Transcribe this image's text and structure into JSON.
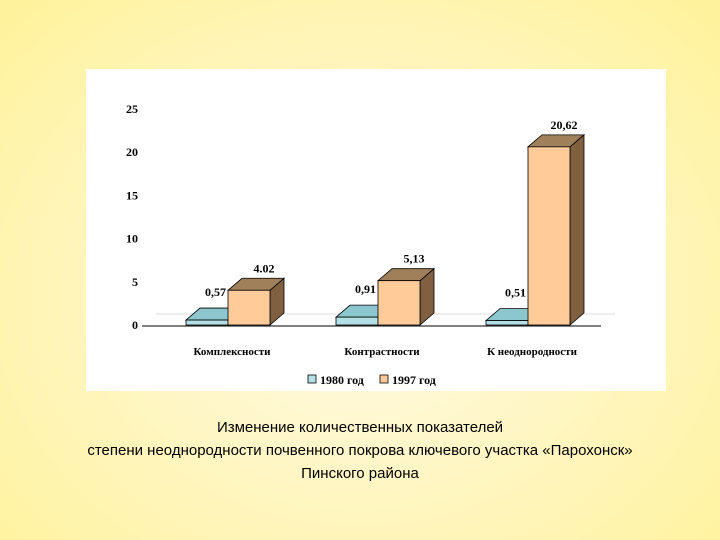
{
  "chart_data": {
    "type": "bar",
    "style": "3d-column",
    "categories": [
      "Комплексности",
      "Контрастности",
      "К неоднородности"
    ],
    "series": [
      {
        "name": "1980 год",
        "values": [
          0.57,
          0.91,
          0.51
        ],
        "labels": [
          "0,57",
          "0,91",
          "0,51"
        ],
        "color": "#b3e0e6",
        "side_color": "#6fa4ab",
        "top_color": "#8cc7cf"
      },
      {
        "name": "1997 год",
        "values": [
          4.02,
          5.13,
          20.62
        ],
        "labels": [
          "4.02",
          "5,13",
          "20,62"
        ],
        "color": "#ffcc99",
        "side_color": "#806040",
        "top_color": "#a0805a"
      }
    ],
    "y_ticks": [
      "0",
      "5",
      "10",
      "15",
      "20",
      "25"
    ],
    "ylim": [
      0,
      25
    ],
    "grid": false,
    "legend_position": "bottom"
  },
  "caption": {
    "line1": "Изменение количественных показателей",
    "line2": "степени неоднородности почвенного покрова ключевого участка «Парохонск»",
    "line3": "Пинского района"
  }
}
